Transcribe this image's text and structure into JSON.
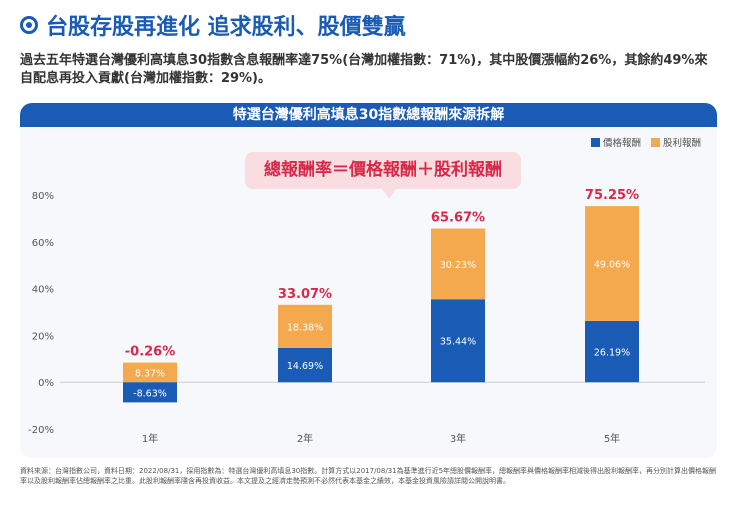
{
  "header": {
    "title": "台股存股再進化 追求股利、股價雙贏",
    "subtitle": "過去五年特選台灣優利高填息30指數含息報酬率達75%(台灣加權指數：71%)，其中股價漲幅約26%，其餘約49%來自配息再投入貢獻(台灣加權指數：29%)。"
  },
  "panel": {
    "title": "特選台灣優利高填息30指數總報酬來源拆解",
    "formula": "總報酬率＝價格報酬＋股利報酬"
  },
  "chart_data": {
    "type": "bar",
    "stacked": true,
    "categories": [
      "1年",
      "2年",
      "3年",
      "5年"
    ],
    "series": [
      {
        "name": "價格報酬",
        "values": [
          -8.63,
          14.69,
          35.44,
          26.19
        ],
        "labels": [
          "-8.63%",
          "14.69%",
          "35.44%",
          "26.19%"
        ],
        "color": "#1a5cb5"
      },
      {
        "name": "股利報酬",
        "values": [
          8.37,
          18.38,
          30.23,
          49.06
        ],
        "labels": [
          "8.37%",
          "18.38%",
          "30.23%",
          "49.06%"
        ],
        "color": "#f5a94e"
      }
    ],
    "totals": [
      "-0.26%",
      "33.07%",
      "65.67%",
      "75.25%"
    ],
    "ylim": [
      -20,
      80
    ],
    "yticks": [
      -20,
      0,
      20,
      40,
      60,
      80
    ],
    "ytick_labels": [
      "-20%",
      "0%",
      "20%",
      "40%",
      "60%",
      "80%"
    ],
    "legend_position": "top-right"
  },
  "footnote": "資料來源：台灣指數公司，資料日期：2022/08/31，採用指數為：特選台灣優利高填息30指數。計算方式以2017/08/31為基準進行近5年總股價報酬率，總報酬率與價格報酬率相減後得出股利報酬率，再分別計算出價格報酬率以及股利報酬率佔總報酬率之比重。此股利報酬率隱含再投資收益。本文提及之經濟走勢預測不必然代表本基金之績效，本基金投資風險請詳閱公開說明書。"
}
